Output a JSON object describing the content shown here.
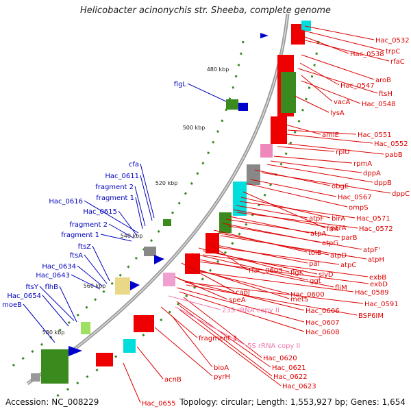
{
  "title": "Helicobacter acinonychis str. Sheeba, complete genome",
  "footer": {
    "accession": "Accession: NC_008229",
    "summary": "Topology: circular; Length: 1,553,927 bp; Genes: 1,654"
  },
  "colors": {
    "forward_gene": "#ee0000",
    "reverse_gene": "#0000cc",
    "rrna": "#ee88bb",
    "other_feature": "#3a8a1e",
    "backbone": "#888888",
    "label_red": "#dd0000",
    "label_blue": "#0000bb",
    "label_pink": "#ee77aa"
  },
  "ticks": [
    "480 kbp",
    "500 kbp",
    "520 kbp",
    "540 kbp",
    "560 kbp",
    "580 kbp"
  ],
  "labels_right": [
    "Hac_0532",
    "trpC",
    "Hac_0538",
    "rfaC",
    "aroB",
    "Hac_0547",
    "ftsH",
    "vacA",
    "Hac_0548",
    "lysA",
    "amiE",
    "Hac_0551",
    "Hac_0552",
    "rplU",
    "pabB",
    "rpmA",
    "dppA",
    "dppB",
    "obgE",
    "dppC",
    "Hac_0567",
    "ompS",
    "fmt",
    "birA",
    "Hac_0571",
    "atpF",
    "parA",
    "Hac_0572",
    "atpA",
    "parB",
    "atpG",
    "atpF'",
    "tolB",
    "atpD",
    "atpH",
    "Hac_0603",
    "pal",
    "atpC",
    "flgK",
    "slyD",
    "ggt",
    "exbB",
    "fliM",
    "exbD",
    "capJ",
    "metS",
    "Hac_0600",
    "Hac_0589",
    "speA",
    "Hac_0606",
    "Hac_0591",
    "BSP6IM",
    "Hac_0607",
    "Hac_0608",
    "fragment 3",
    "Hac_0620",
    "bioA",
    "Hac_0621",
    "pyrH",
    "Hac_0622",
    "Hac_0623",
    "acnB",
    "Hac_0655"
  ],
  "labels_pink": [
    "23S rRNA copy II",
    "5S rRNA copy II"
  ],
  "labels_left": [
    "flgL",
    "cfa",
    "Hac_0611",
    "fragment 2",
    "fragment 1",
    "Hac_0616",
    "Hac_0615",
    "fragment 2",
    "fragment 1",
    "ftsZ",
    "ftsA",
    "Hac_0634",
    "Hac_0643",
    "ftsY",
    "flhB",
    "Hac_0654",
    "moeB"
  ]
}
